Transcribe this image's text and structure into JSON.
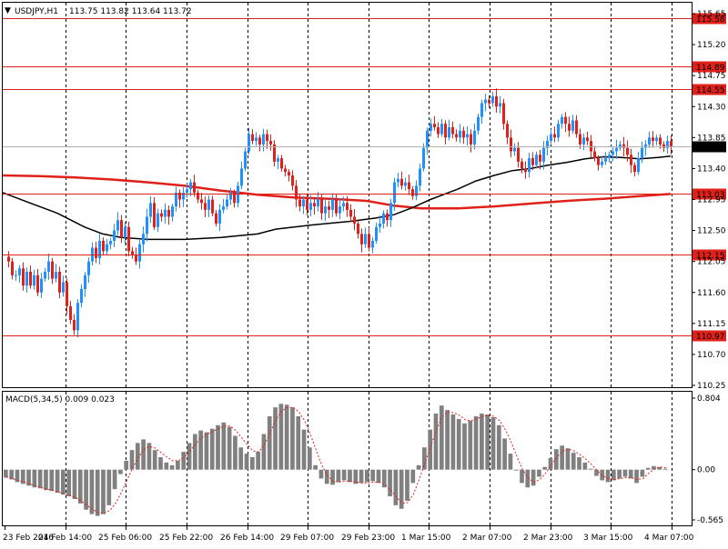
{
  "header": {
    "symbol": "USDJPY,H1",
    "ohlc": "113.75 113.82 113.64 113.72",
    "menu_glyph": "▼"
  },
  "colors": {
    "bull": "#1e90ff",
    "bear": "#e0211a",
    "hline": "#e0211a",
    "ma_fast": "#000000",
    "ma_slow": "#e0211a",
    "macd_hist": "#808080",
    "macd_signal": "#e0211a",
    "grid": "#000000"
  },
  "chart_data": [
    {
      "type": "candlestick",
      "name": "price",
      "ylim": [
        110.25,
        115.65
      ],
      "y_ticks": [
        "115.65",
        "115.20",
        "114.75",
        "114.30",
        "113.85",
        "113.40",
        "112.95",
        "112.50",
        "112.05",
        "111.60",
        "111.15",
        "110.70",
        "110.25"
      ],
      "levels": [
        {
          "value": 115.58,
          "label": "115.58"
        },
        {
          "value": 114.89,
          "label": "114.89"
        },
        {
          "value": 114.55,
          "label": "114.55"
        },
        {
          "value": 113.03,
          "label": "113.03"
        },
        {
          "value": 112.15,
          "label": "112.15"
        },
        {
          "value": 110.97,
          "label": "110.97"
        }
      ],
      "current_price": {
        "value": 113.72,
        "label": "113.72"
      },
      "x_labels": [
        "23 Feb 2016",
        "24 Feb 14:00",
        "25 Feb 06:00",
        "25 Feb 22:00",
        "26 Feb 14:00",
        "29 Feb 07:00",
        "29 Feb 23:00",
        "1 Mar 15:00",
        "2 Mar 07:00",
        "2 Mar 23:00",
        "3 Mar 15:00",
        "4 Mar 07:00"
      ],
      "close_path": [
        [
          0,
          112.12
        ],
        [
          6,
          112.05
        ],
        [
          10,
          111.85
        ],
        [
          14,
          111.85
        ],
        [
          18,
          111.95
        ],
        [
          22,
          111.7
        ],
        [
          26,
          111.9
        ],
        [
          30,
          111.7
        ],
        [
          34,
          111.85
        ],
        [
          38,
          111.6
        ],
        [
          42,
          111.8
        ],
        [
          46,
          111.9
        ],
        [
          50,
          112.05
        ],
        [
          54,
          111.8
        ],
        [
          58,
          111.9
        ],
        [
          62,
          111.6
        ],
        [
          66,
          111.75
        ],
        [
          70,
          111.4
        ],
        [
          74,
          111.2
        ],
        [
          78,
          111.05
        ],
        [
          82,
          111.45
        ],
        [
          86,
          111.65
        ],
        [
          90,
          111.85
        ],
        [
          94,
          112.05
        ],
        [
          98,
          112.25
        ],
        [
          102,
          112.1
        ],
        [
          106,
          112.35
        ],
        [
          110,
          112.2
        ],
        [
          114,
          112.3
        ],
        [
          118,
          112.35
        ],
        [
          122,
          112.5
        ],
        [
          126,
          112.65
        ],
        [
          130,
          112.4
        ],
        [
          134,
          112.55
        ],
        [
          138,
          112.2
        ],
        [
          142,
          112.15
        ],
        [
          146,
          112.05
        ],
        [
          150,
          112.3
        ],
        [
          154,
          112.45
        ],
        [
          158,
          112.7
        ],
        [
          162,
          112.9
        ],
        [
          166,
          112.55
        ],
        [
          170,
          112.75
        ],
        [
          174,
          112.7
        ],
        [
          178,
          112.8
        ],
        [
          182,
          112.7
        ],
        [
          186,
          112.85
        ],
        [
          190,
          113.05
        ],
        [
          194,
          112.95
        ],
        [
          198,
          113.05
        ],
        [
          202,
          113.1
        ],
        [
          206,
          113.2
        ],
        [
          210,
          113.05
        ],
        [
          214,
          112.95
        ],
        [
          218,
          112.9
        ],
        [
          222,
          112.8
        ],
        [
          226,
          112.95
        ],
        [
          230,
          112.75
        ],
        [
          234,
          112.6
        ],
        [
          238,
          112.8
        ],
        [
          242,
          112.85
        ],
        [
          246,
          112.95
        ],
        [
          250,
          113.05
        ],
        [
          254,
          112.9
        ],
        [
          258,
          113.15
        ],
        [
          262,
          113.4
        ],
        [
          266,
          113.65
        ],
        [
          270,
          113.9
        ],
        [
          274,
          113.8
        ],
        [
          278,
          113.85
        ],
        [
          282,
          113.75
        ],
        [
          286,
          113.9
        ],
        [
          290,
          113.8
        ],
        [
          294,
          113.75
        ],
        [
          298,
          113.5
        ],
        [
          302,
          113.55
        ],
        [
          306,
          113.4
        ],
        [
          310,
          113.35
        ],
        [
          314,
          113.3
        ],
        [
          318,
          113.15
        ],
        [
          322,
          112.95
        ],
        [
          326,
          112.85
        ],
        [
          330,
          112.95
        ],
        [
          334,
          112.8
        ],
        [
          338,
          112.9
        ],
        [
          342,
          112.85
        ],
        [
          346,
          112.95
        ],
        [
          350,
          112.75
        ],
        [
          354,
          112.85
        ],
        [
          358,
          112.8
        ],
        [
          362,
          112.95
        ],
        [
          366,
          112.75
        ],
        [
          370,
          112.85
        ],
        [
          374,
          112.9
        ],
        [
          378,
          112.8
        ],
        [
          382,
          112.7
        ],
        [
          386,
          112.6
        ],
        [
          390,
          112.45
        ],
        [
          394,
          112.3
        ],
        [
          398,
          112.45
        ],
        [
          402,
          112.25
        ],
        [
          406,
          112.35
        ],
        [
          410,
          112.55
        ],
        [
          414,
          112.6
        ],
        [
          418,
          112.75
        ],
        [
          422,
          112.65
        ],
        [
          426,
          112.9
        ],
        [
          430,
          113.2
        ],
        [
          434,
          113.25
        ],
        [
          438,
          113.15
        ],
        [
          442,
          113.2
        ],
        [
          446,
          113.1
        ],
        [
          450,
          113.0
        ],
        [
          454,
          113.15
        ],
        [
          458,
          113.4
        ],
        [
          462,
          113.7
        ],
        [
          466,
          113.95
        ],
        [
          470,
          114.05
        ],
        [
          474,
          114.0
        ],
        [
          478,
          113.9
        ],
        [
          482,
          114.05
        ],
        [
          486,
          113.85
        ],
        [
          490,
          114.0
        ],
        [
          494,
          113.9
        ],
        [
          498,
          113.85
        ],
        [
          502,
          113.95
        ],
        [
          506,
          113.85
        ],
        [
          510,
          113.9
        ],
        [
          514,
          113.75
        ],
        [
          518,
          113.95
        ],
        [
          522,
          114.15
        ],
        [
          526,
          114.35
        ],
        [
          530,
          114.4
        ],
        [
          534,
          114.35
        ],
        [
          538,
          114.45
        ],
        [
          542,
          114.3
        ],
        [
          546,
          114.35
        ],
        [
          550,
          114.05
        ],
        [
          554,
          113.85
        ],
        [
          558,
          113.65
        ],
        [
          562,
          113.7
        ],
        [
          566,
          113.5
        ],
        [
          570,
          113.4
        ],
        [
          574,
          113.35
        ],
        [
          578,
          113.55
        ],
        [
          582,
          113.45
        ],
        [
          586,
          113.6
        ],
        [
          590,
          113.5
        ],
        [
          594,
          113.7
        ],
        [
          598,
          113.8
        ],
        [
          602,
          113.9
        ],
        [
          606,
          113.85
        ],
        [
          610,
          114.05
        ],
        [
          614,
          114.15
        ],
        [
          618,
          114.05
        ],
        [
          622,
          113.95
        ],
        [
          626,
          114.1
        ],
        [
          630,
          113.9
        ],
        [
          634,
          113.75
        ],
        [
          638,
          113.85
        ],
        [
          642,
          113.8
        ],
        [
          646,
          113.65
        ],
        [
          650,
          113.55
        ],
        [
          654,
          113.45
        ],
        [
          658,
          113.5
        ],
        [
          662,
          113.55
        ],
        [
          666,
          113.6
        ],
        [
          670,
          113.65
        ],
        [
          674,
          113.7
        ],
        [
          678,
          113.75
        ],
        [
          682,
          113.7
        ],
        [
          686,
          113.6
        ],
        [
          690,
          113.45
        ],
        [
          694,
          113.35
        ],
        [
          698,
          113.55
        ],
        [
          702,
          113.7
        ],
        [
          706,
          113.75
        ],
        [
          710,
          113.85
        ],
        [
          714,
          113.8
        ],
        [
          718,
          113.85
        ],
        [
          722,
          113.75
        ],
        [
          726,
          113.7
        ],
        [
          730,
          113.8
        ],
        [
          734,
          113.72
        ]
      ],
      "ma_fast": [
        [
          0,
          113.05
        ],
        [
          30,
          112.9
        ],
        [
          60,
          112.75
        ],
        [
          90,
          112.55
        ],
        [
          110,
          112.45
        ],
        [
          130,
          112.4
        ],
        [
          160,
          112.37
        ],
        [
          200,
          112.37
        ],
        [
          240,
          112.4
        ],
        [
          280,
          112.45
        ],
        [
          300,
          112.52
        ],
        [
          340,
          112.58
        ],
        [
          380,
          112.63
        ],
        [
          410,
          112.68
        ],
        [
          430,
          112.73
        ],
        [
          450,
          112.83
        ],
        [
          470,
          112.95
        ],
        [
          500,
          113.1
        ],
        [
          520,
          113.22
        ],
        [
          540,
          113.3
        ],
        [
          560,
          113.37
        ],
        [
          580,
          113.4
        ],
        [
          600,
          113.45
        ],
        [
          620,
          113.49
        ],
        [
          640,
          113.54
        ],
        [
          660,
          113.57
        ],
        [
          680,
          113.56
        ],
        [
          700,
          113.54
        ],
        [
          720,
          113.56
        ],
        [
          734,
          113.58
        ]
      ],
      "ma_slow": [
        [
          0,
          113.3
        ],
        [
          40,
          113.29
        ],
        [
          80,
          113.27
        ],
        [
          120,
          113.24
        ],
        [
          160,
          113.2
        ],
        [
          200,
          113.15
        ],
        [
          240,
          113.08
        ],
        [
          280,
          113.02
        ],
        [
          320,
          112.98
        ],
        [
          360,
          112.96
        ],
        [
          400,
          112.93
        ],
        [
          430,
          112.86
        ],
        [
          460,
          112.82
        ],
        [
          500,
          112.82
        ],
        [
          540,
          112.85
        ],
        [
          580,
          112.89
        ],
        [
          620,
          112.93
        ],
        [
          660,
          112.96
        ],
        [
          700,
          113.0
        ],
        [
          734,
          113.03
        ]
      ]
    },
    {
      "type": "bar",
      "name": "macd",
      "title": "MACD(5,34,5) 0.009 0.023",
      "ylim": [
        -0.565,
        0.804
      ],
      "y_ticks": [
        "0.804",
        "0.00",
        "-0.565"
      ],
      "series": [
        {
          "role": "histogram",
          "values": [
            -0.09,
            -0.11,
            -0.14,
            -0.16,
            -0.18,
            -0.2,
            -0.21,
            -0.23,
            -0.24,
            -0.26,
            -0.28,
            -0.3,
            -0.33,
            -0.38,
            -0.45,
            -0.5,
            -0.52,
            -0.5,
            -0.4,
            -0.22,
            -0.05,
            0.1,
            0.22,
            0.3,
            0.34,
            0.3,
            0.22,
            0.14,
            0.08,
            0.05,
            0.1,
            0.2,
            0.3,
            0.4,
            0.44,
            0.42,
            0.46,
            0.5,
            0.53,
            0.48,
            0.38,
            0.25,
            0.18,
            0.14,
            0.2,
            0.4,
            0.6,
            0.7,
            0.74,
            0.73,
            0.7,
            0.6,
            0.45,
            0.25,
            0.05,
            -0.1,
            -0.16,
            -0.17,
            -0.14,
            -0.12,
            -0.14,
            -0.16,
            -0.15,
            -0.14,
            -0.13,
            -0.15,
            -0.2,
            -0.3,
            -0.4,
            -0.44,
            -0.35,
            -0.15,
            0.05,
            0.25,
            0.45,
            0.63,
            0.72,
            0.67,
            0.62,
            0.57,
            0.52,
            0.55,
            0.6,
            0.63,
            0.62,
            0.59,
            0.5,
            0.35,
            0.18,
            0.0,
            -0.15,
            -0.2,
            -0.18,
            -0.08,
            0.03,
            0.13,
            0.23,
            0.27,
            0.24,
            0.19,
            0.14,
            0.08,
            0.01,
            -0.07,
            -0.12,
            -0.14,
            -0.12,
            -0.1,
            -0.08,
            -0.1,
            -0.15,
            -0.08,
            0.02,
            0.04,
            0.03,
            0.01
          ]
        },
        {
          "role": "signal",
          "values": [
            -0.08,
            -0.1,
            -0.12,
            -0.14,
            -0.16,
            -0.18,
            -0.2,
            -0.22,
            -0.23,
            -0.25,
            -0.27,
            -0.29,
            -0.31,
            -0.35,
            -0.4,
            -0.45,
            -0.48,
            -0.49,
            -0.46,
            -0.38,
            -0.26,
            -0.12,
            0.02,
            0.14,
            0.23,
            0.26,
            0.24,
            0.19,
            0.14,
            0.1,
            0.1,
            0.14,
            0.21,
            0.29,
            0.36,
            0.4,
            0.43,
            0.46,
            0.49,
            0.49,
            0.44,
            0.36,
            0.28,
            0.21,
            0.2,
            0.28,
            0.42,
            0.56,
            0.66,
            0.7,
            0.7,
            0.65,
            0.55,
            0.4,
            0.22,
            0.05,
            -0.07,
            -0.13,
            -0.14,
            -0.13,
            -0.13,
            -0.14,
            -0.15,
            -0.15,
            -0.14,
            -0.14,
            -0.17,
            -0.23,
            -0.31,
            -0.38,
            -0.37,
            -0.27,
            -0.1,
            0.08,
            0.27,
            0.45,
            0.6,
            0.65,
            0.64,
            0.61,
            0.56,
            0.55,
            0.57,
            0.6,
            0.61,
            0.6,
            0.55,
            0.45,
            0.31,
            0.15,
            0.0,
            -0.1,
            -0.14,
            -0.11,
            -0.04,
            0.05,
            0.14,
            0.21,
            0.23,
            0.21,
            0.17,
            0.12,
            0.06,
            -0.01,
            -0.07,
            -0.1,
            -0.11,
            -0.1,
            -0.09,
            -0.09,
            -0.11,
            -0.1,
            -0.04,
            0.01,
            0.03,
            0.02
          ]
        }
      ]
    }
  ]
}
